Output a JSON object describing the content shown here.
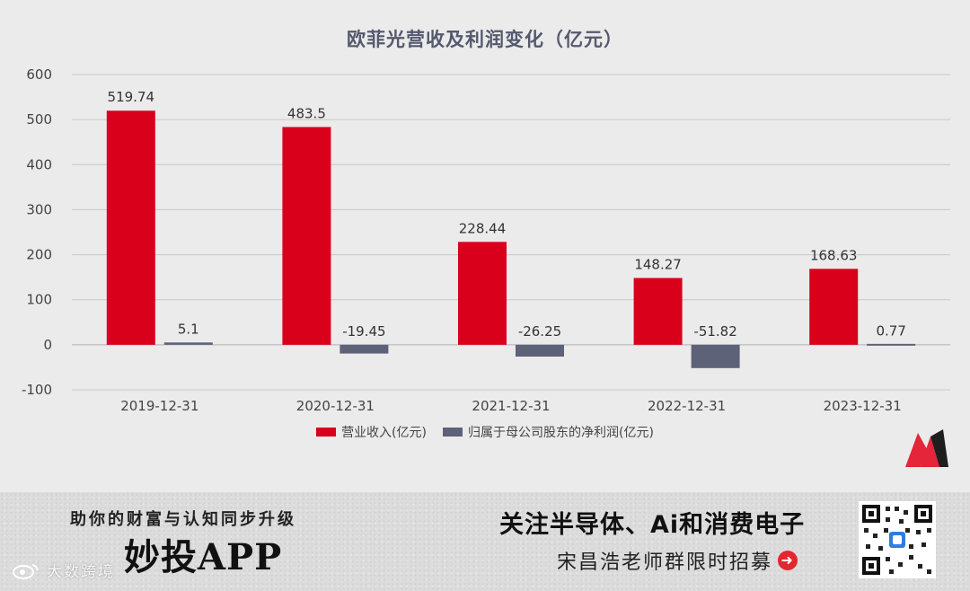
{
  "chart_data": {
    "type": "bar",
    "title": "欧菲光营收及利润变化（亿元）",
    "categories": [
      "2019-12-31",
      "2020-12-31",
      "2021-12-31",
      "2022-12-31",
      "2023-12-31"
    ],
    "series": [
      {
        "name": "营业收入(亿元)",
        "color": "#d9001b",
        "values": [
          519.74,
          483.5,
          228.44,
          148.27,
          168.63
        ],
        "labels": [
          "519.74",
          "483.5",
          "228.44",
          "148.27",
          "168.63"
        ]
      },
      {
        "name": "归属于母公司股东的净利润(亿元)",
        "color": "#5e6278",
        "values": [
          5.1,
          -19.45,
          -26.25,
          -51.82,
          0.77
        ],
        "labels": [
          "5.1",
          "-19.45",
          "-26.25",
          "-51.82",
          "0.77"
        ]
      }
    ],
    "ylim": [
      -100,
      600
    ],
    "yticks": [
      600,
      500,
      400,
      300,
      200,
      100,
      0,
      -100
    ],
    "grid": true,
    "legend": "bottom"
  },
  "banner": {
    "slogan": "助你的财富与认知同步升级",
    "app_name": "妙投APP",
    "watermark": "大数跨境",
    "headline": "关注半导体、Ai和消费电子",
    "subline": "宋昌浩老师群限时招募",
    "arrow_icon": "arrow-right-icon"
  }
}
